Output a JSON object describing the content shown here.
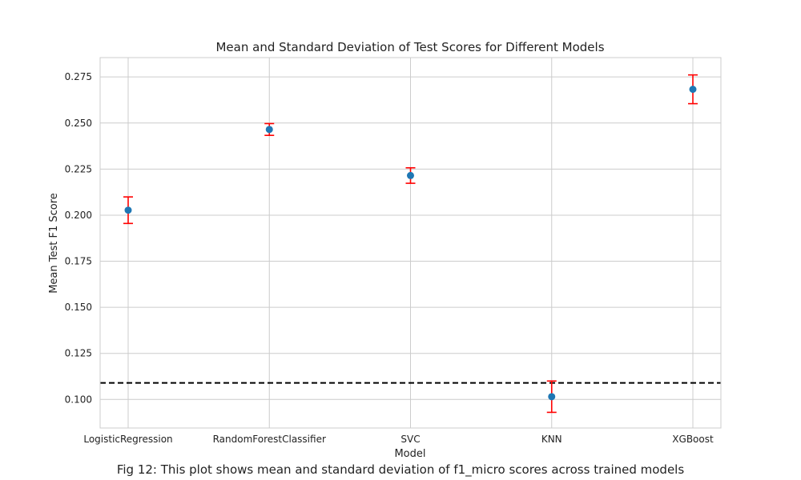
{
  "chart_data": {
    "type": "scatter",
    "title": "Mean and Standard Deviation of Test Scores for Different Models",
    "xlabel": "Model",
    "ylabel": "Mean Test F1 Score",
    "categories": [
      "LogisticRegression",
      "RandomForestClassifier",
      "SVC",
      "KNN",
      "XGBoost"
    ],
    "series": [
      {
        "values": [
          0.2027,
          0.2465,
          0.2215,
          0.1015,
          0.2683
        ],
        "errors": [
          0.0072,
          0.0032,
          0.0042,
          0.0085,
          0.0078
        ]
      }
    ],
    "reference_line": 0.109,
    "ylim": [
      0.0845,
      0.2855
    ],
    "yticks": [
      0.1,
      0.125,
      0.15,
      0.175,
      0.2,
      0.225,
      0.25,
      0.275
    ],
    "ytick_labels": [
      "0.100",
      "0.125",
      "0.150",
      "0.175",
      "0.200",
      "0.225",
      "0.250",
      "0.275"
    ],
    "grid": true,
    "colors": {
      "point": "#1f77b4",
      "errorbar": "#ff0000",
      "reference": "#000000",
      "grid": "#cccccc"
    }
  },
  "caption": "Fig 12: This plot shows mean and standard deviation of f1_micro scores across trained models"
}
